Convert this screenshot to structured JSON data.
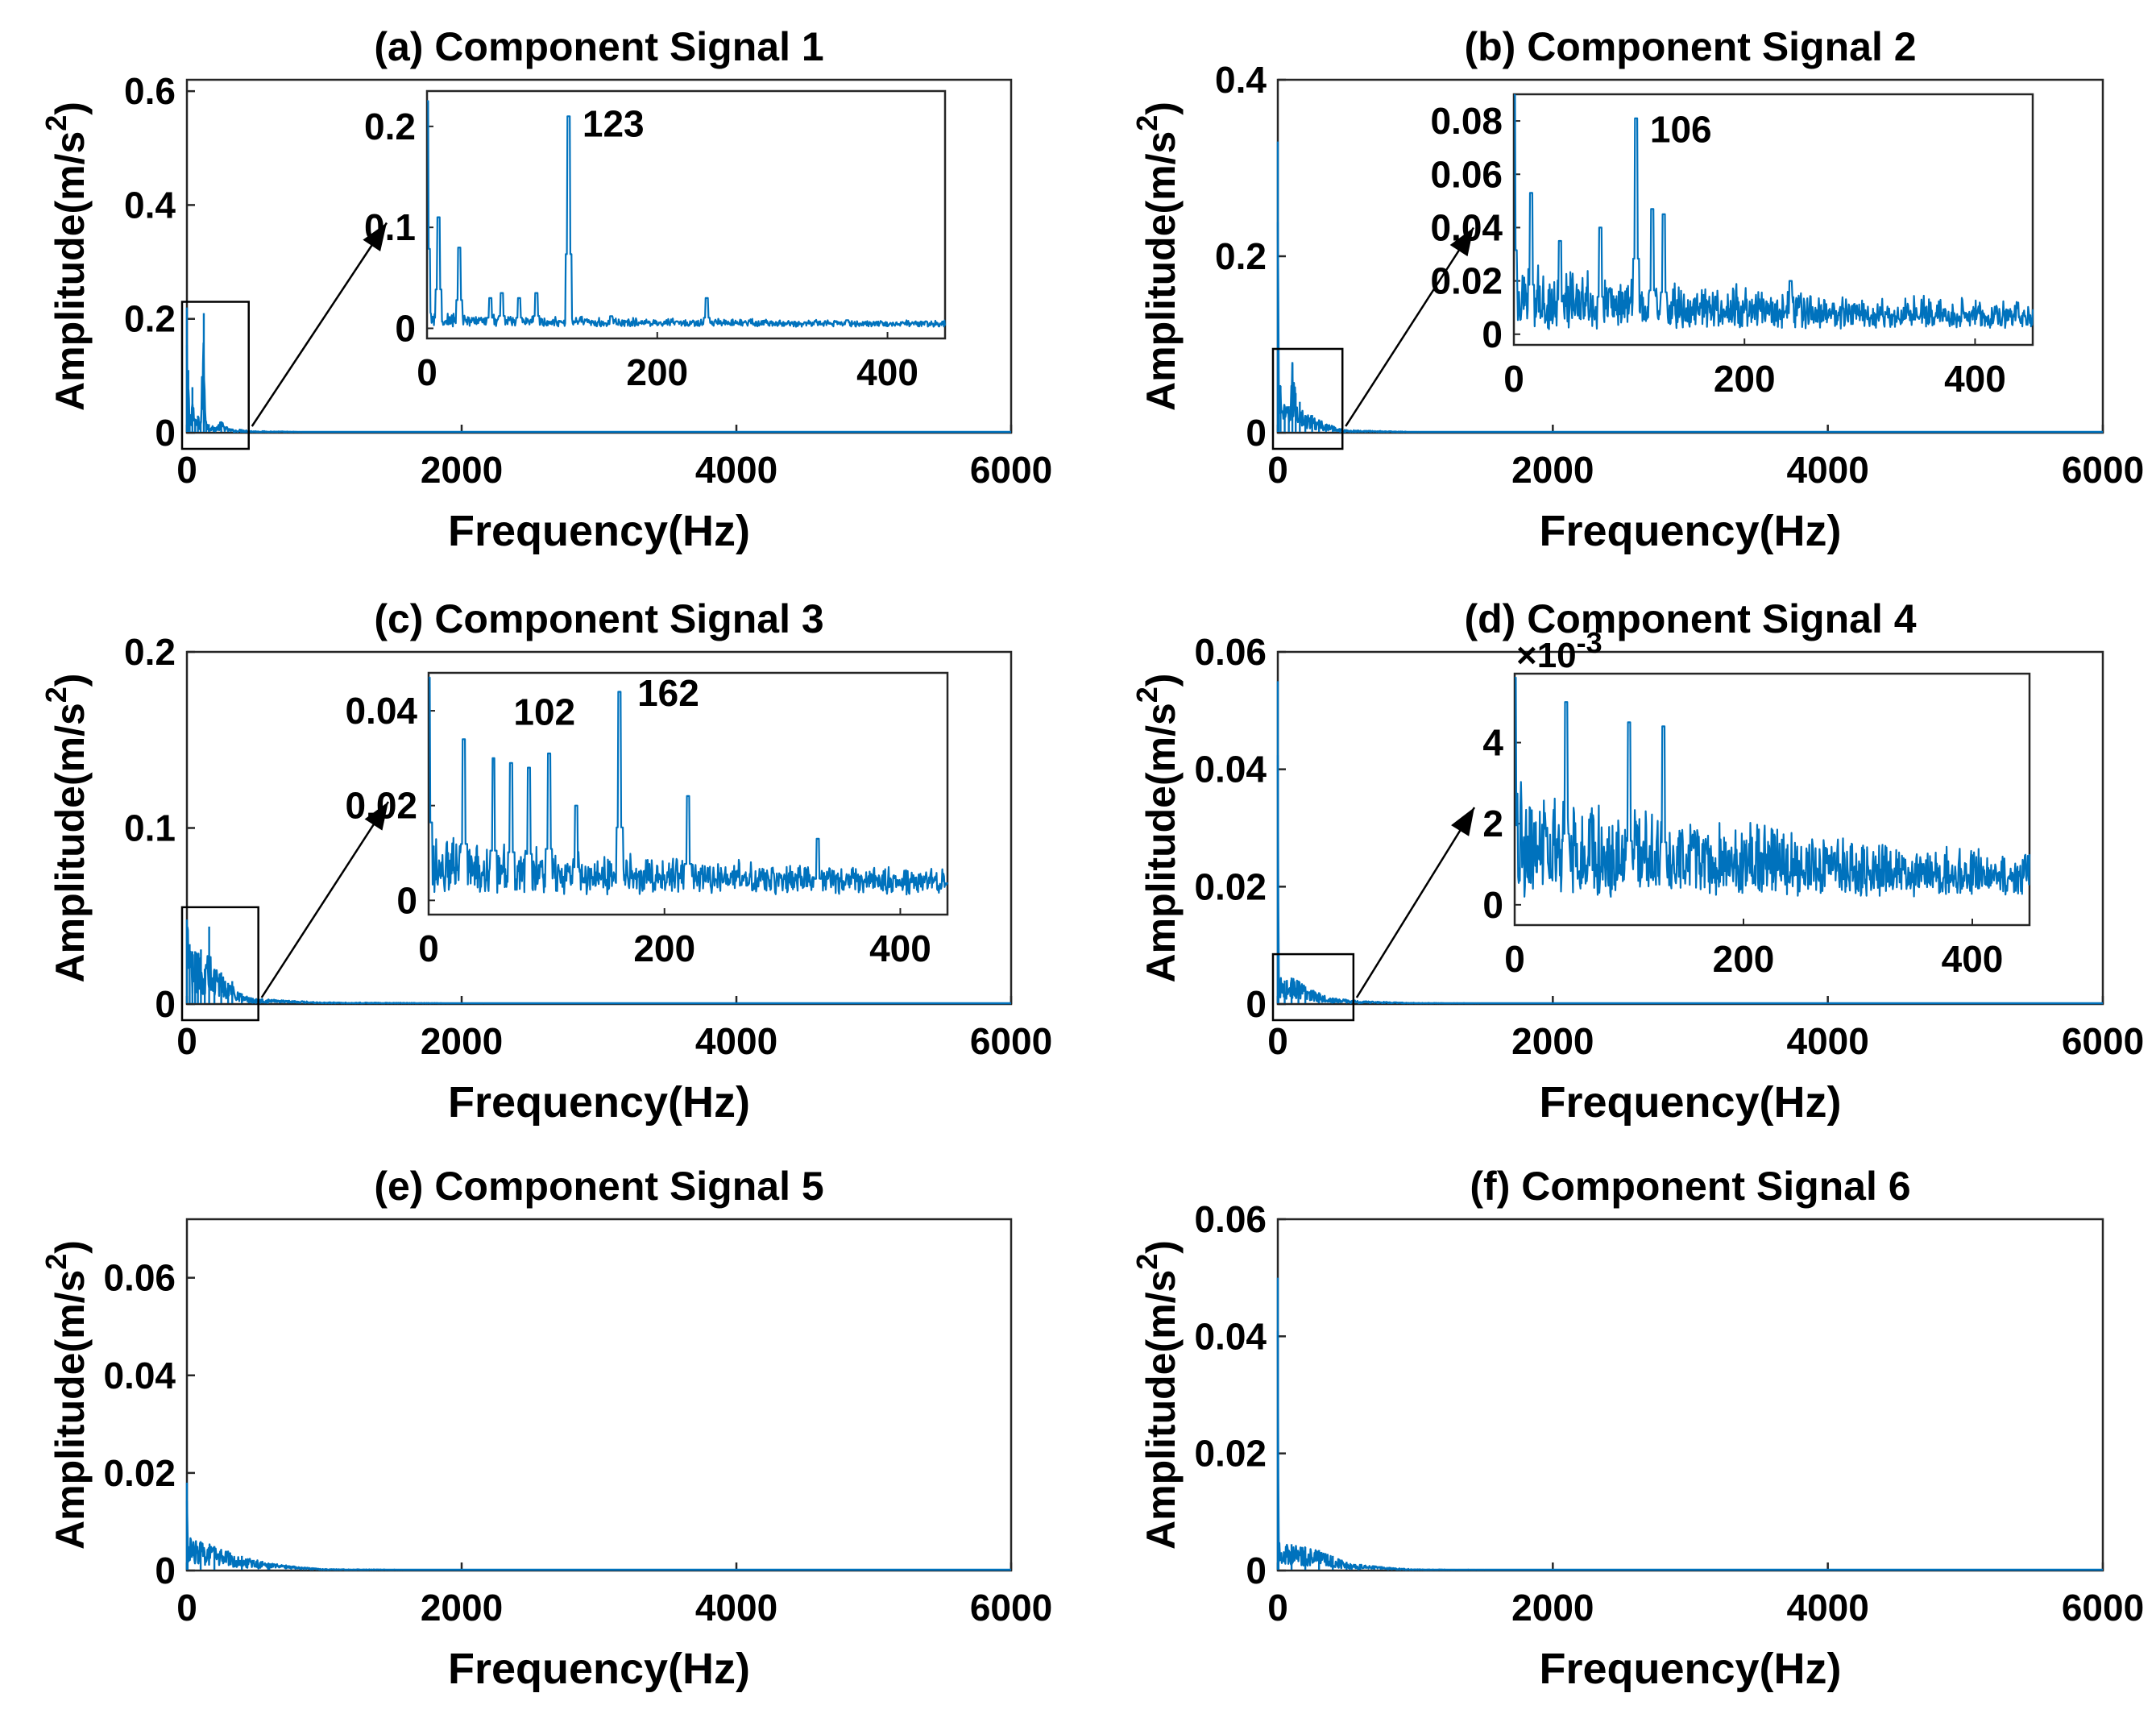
{
  "chart_data": [
    {
      "id": "a",
      "type": "line",
      "title": "(a) Component Signal 1",
      "xlabel": "Frequency(Hz)",
      "ylabel": "Amplitude(m/s^2)",
      "xlim": [
        0,
        6000
      ],
      "ylim": [
        0,
        0.62
      ],
      "xticks": [
        0,
        2000,
        4000,
        6000
      ],
      "yticks": [
        0,
        0.2,
        0.4,
        0.6
      ],
      "ytick_labels": [
        "0",
        "0.2",
        "0.4",
        "0.6"
      ],
      "line_color": "#0072BD",
      "main_series": {
        "x": [
          0,
          5,
          10,
          20,
          40,
          60,
          80,
          100,
          123,
          140,
          160,
          200,
          250,
          300,
          350,
          400,
          450,
          500,
          1000,
          2000,
          4000,
          6000
        ],
        "y": [
          0.22,
          0.03,
          0.11,
          0.02,
          0.08,
          0.02,
          0.03,
          0.02,
          0.21,
          0.02,
          0.015,
          0.01,
          0.02,
          0.008,
          0.005,
          0.006,
          0.004,
          0.003,
          0.001,
          0.0005,
          0.0003,
          0.0002
        ]
      },
      "zoom_box": {
        "xlim": [
          0,
          450
        ],
        "ylim": [
          0,
          0.23
        ]
      },
      "inset": {
        "xlim": [
          0,
          450
        ],
        "ylim": [
          -0.01,
          0.235
        ],
        "xticks": [
          0,
          200,
          400
        ],
        "yticks": [
          0,
          0.1,
          0.2
        ],
        "ytick_labels": [
          "0",
          "0.1",
          "0.2"
        ],
        "exponent": "",
        "noise_base": 0.005,
        "noise_amp": 0.01,
        "decay": 0.004,
        "peaks": [
          {
            "f": 0,
            "a": 0.225
          },
          {
            "f": 10,
            "a": 0.11
          },
          {
            "f": 28,
            "a": 0.08
          },
          {
            "f": 55,
            "a": 0.03
          },
          {
            "f": 65,
            "a": 0.035
          },
          {
            "f": 80,
            "a": 0.03
          },
          {
            "f": 95,
            "a": 0.035
          },
          {
            "f": 123,
            "a": 0.21
          },
          {
            "f": 160,
            "a": 0.012
          },
          {
            "f": 243,
            "a": 0.03
          },
          {
            "f": 365,
            "a": 0.008
          }
        ],
        "annotations": [
          {
            "text": "123",
            "x": 135,
            "y": 0.19
          }
        ]
      }
    },
    {
      "id": "b",
      "type": "line",
      "title": "(b) Component Signal 2",
      "xlabel": "Frequency(Hz)",
      "ylabel": "Amplitude(m/s^2)",
      "xlim": [
        0,
        6000
      ],
      "ylim": [
        0,
        0.4
      ],
      "xticks": [
        0,
        2000,
        4000,
        6000
      ],
      "yticks": [
        0,
        0.2,
        0.4
      ],
      "ytick_labels": [
        "0",
        "0.2",
        "0.4"
      ],
      "line_color": "#0072BD",
      "main_series": {
        "x": [
          0,
          5,
          20,
          50,
          80,
          106,
          130,
          160,
          200,
          250,
          300,
          350,
          400,
          450,
          500,
          1000,
          2000,
          4000,
          6000
        ],
        "y": [
          0.33,
          0.09,
          0.053,
          0.03,
          0.03,
          0.08,
          0.045,
          0.035,
          0.02,
          0.02,
          0.015,
          0.01,
          0.008,
          0.005,
          0.003,
          0.001,
          0.0005,
          0.0003,
          0.0002
        ]
      },
      "zoom_box": {
        "xlim": [
          0,
          470
        ],
        "ylim": [
          0,
          0.095
        ]
      },
      "inset": {
        "xlim": [
          0,
          450
        ],
        "ylim": [
          -0.004,
          0.09
        ],
        "xticks": [
          0,
          200,
          400
        ],
        "yticks": [
          0,
          0.02,
          0.04,
          0.06,
          0.08
        ],
        "ytick_labels": [
          "0",
          "0.02",
          "0.04",
          "0.06",
          "0.08"
        ],
        "exponent": "",
        "noise_base": 0.006,
        "noise_amp": 0.02,
        "decay": 0.003,
        "peaks": [
          {
            "f": 0,
            "a": 0.09
          },
          {
            "f": 15,
            "a": 0.053
          },
          {
            "f": 40,
            "a": 0.035
          },
          {
            "f": 75,
            "a": 0.04
          },
          {
            "f": 106,
            "a": 0.081
          },
          {
            "f": 120,
            "a": 0.047
          },
          {
            "f": 130,
            "a": 0.045
          },
          {
            "f": 240,
            "a": 0.02
          }
        ],
        "annotations": [
          {
            "text": "106",
            "x": 118,
            "y": 0.072
          }
        ]
      }
    },
    {
      "id": "c",
      "type": "line",
      "title": "(c) Component Signal 3",
      "xlabel": "Frequency(Hz)",
      "ylabel": "Amplitude(m/s^2)",
      "xlim": [
        0,
        6000
      ],
      "ylim": [
        0,
        0.2
      ],
      "xticks": [
        0,
        2000,
        4000,
        6000
      ],
      "yticks": [
        0,
        0.1,
        0.2
      ],
      "ytick_labels": [
        "0",
        "0.1",
        "0.2"
      ],
      "line_color": "#0072BD",
      "main_series": {
        "x": [
          0,
          20,
          40,
          60,
          80,
          102,
          130,
          162,
          200,
          250,
          300,
          330,
          400,
          450,
          500,
          1000,
          2000,
          4000,
          6000
        ],
        "y": [
          0.048,
          0.034,
          0.03,
          0.03,
          0.028,
          0.031,
          0.02,
          0.044,
          0.02,
          0.018,
          0.012,
          0.013,
          0.006,
          0.004,
          0.003,
          0.001,
          0.0005,
          0.0003,
          0.0002
        ]
      },
      "zoom_box": {
        "xlim": [
          0,
          520
        ],
        "ylim": [
          0,
          0.055
        ]
      },
      "inset": {
        "xlim": [
          0,
          440
        ],
        "ylim": [
          -0.003,
          0.048
        ],
        "xticks": [
          0,
          200,
          400
        ],
        "yticks": [
          0,
          0.02,
          0.04
        ],
        "ytick_labels": [
          "0",
          "0.02",
          "0.04"
        ],
        "exponent": "",
        "noise_base": 0.004,
        "noise_amp": 0.01,
        "decay": 0.004,
        "peaks": [
          {
            "f": 0,
            "a": 0.047
          },
          {
            "f": 30,
            "a": 0.034
          },
          {
            "f": 55,
            "a": 0.03
          },
          {
            "f": 70,
            "a": 0.029
          },
          {
            "f": 85,
            "a": 0.028
          },
          {
            "f": 102,
            "a": 0.031
          },
          {
            "f": 125,
            "a": 0.02
          },
          {
            "f": 162,
            "a": 0.044
          },
          {
            "f": 220,
            "a": 0.022
          },
          {
            "f": 330,
            "a": 0.013
          }
        ],
        "annotations": [
          {
            "text": "102",
            "x": 72,
            "y": 0.037
          },
          {
            "text": "162",
            "x": 177,
            "y": 0.041
          }
        ]
      }
    },
    {
      "id": "d",
      "type": "line",
      "title": "(d) Component Signal 4",
      "xlabel": "Frequency(Hz)",
      "ylabel": "Amplitude(m/s^2)",
      "xlim": [
        0,
        6000
      ],
      "ylim": [
        0,
        0.06
      ],
      "xticks": [
        0,
        2000,
        4000,
        6000
      ],
      "yticks": [
        0,
        0.02,
        0.04,
        0.06
      ],
      "ytick_labels": [
        "0",
        "0.02",
        "0.04",
        "0.06"
      ],
      "line_color": "#0072BD",
      "main_series": {
        "x": [
          0,
          5,
          50,
          100,
          150,
          200,
          300,
          400,
          500,
          600,
          1000,
          2000,
          4000,
          6000
        ],
        "y": [
          0.055,
          0.005,
          0.004,
          0.0045,
          0.004,
          0.003,
          0.002,
          0.001,
          0.0008,
          0.0005,
          0.0002,
          0.0001,
          0.0001,
          0.0001
        ]
      },
      "zoom_box": {
        "xlim": [
          0,
          550
        ],
        "ylim": [
          0,
          0.0085
        ]
      },
      "inset": {
        "xlim": [
          0,
          450
        ],
        "ylim": [
          -0.5,
          5.7
        ],
        "xticks": [
          0,
          200,
          400
        ],
        "yticks": [
          0,
          2,
          4
        ],
        "ytick_labels": [
          "0",
          "2",
          "4"
        ],
        "exponent": "×10^-3",
        "noise_base": 0.6,
        "noise_amp": 2.4,
        "decay": 0.003,
        "peaks": [
          {
            "f": 0,
            "a": 5.6
          },
          {
            "f": 45,
            "a": 5.0
          },
          {
            "f": 100,
            "a": 4.5
          },
          {
            "f": 130,
            "a": 4.4
          }
        ],
        "annotations": []
      }
    },
    {
      "id": "e",
      "type": "line",
      "title": "(e) Component Signal 5",
      "xlabel": "Frequency(Hz)",
      "ylabel": "Amplitude(m/s^2)",
      "xlim": [
        0,
        6000
      ],
      "ylim": [
        0,
        0.072
      ],
      "xticks": [
        0,
        2000,
        4000,
        6000
      ],
      "yticks": [
        0,
        0.02,
        0.04,
        0.06
      ],
      "ytick_labels": [
        "0",
        "0.02",
        "0.04",
        "0.06"
      ],
      "line_color": "#0072BD",
      "main_series": {
        "x": [
          0,
          5,
          100,
          200,
          400,
          600,
          800,
          1000,
          2000,
          4000,
          6000
        ],
        "y": [
          0.018,
          0.007,
          0.006,
          0.005,
          0.003,
          0.0015,
          0.0008,
          0.0003,
          0.0001,
          0.0001,
          0.0001
        ]
      }
    },
    {
      "id": "f",
      "type": "line",
      "title": "(f) Component Signal 6",
      "xlabel": "Frequency(Hz)",
      "ylabel": "Amplitude(m/s^2)",
      "xlim": [
        0,
        6000
      ],
      "ylim": [
        0,
        0.06
      ],
      "xticks": [
        0,
        2000,
        4000,
        6000
      ],
      "yticks": [
        0,
        0.02,
        0.04,
        0.06
      ],
      "ytick_labels": [
        "0",
        "0.02",
        "0.04",
        "0.06"
      ],
      "line_color": "#0072BD",
      "main_series": {
        "x": [
          0,
          5,
          100,
          200,
          300,
          400,
          500,
          600,
          800,
          1000,
          2000,
          4000,
          6000
        ],
        "y": [
          0.05,
          0.005,
          0.0045,
          0.004,
          0.0035,
          0.0025,
          0.0015,
          0.001,
          0.0005,
          0.0002,
          0.0001,
          0.0001,
          0.0001
        ]
      }
    }
  ]
}
